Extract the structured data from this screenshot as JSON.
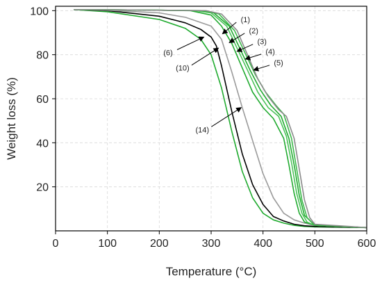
{
  "chart_data": {
    "type": "line",
    "xlabel": "Temperature (°C)",
    "ylabel": "Weight loss (%)",
    "xlim": [
      0,
      600
    ],
    "ylim": [
      0,
      102
    ],
    "xticks": [
      0,
      100,
      200,
      300,
      400,
      500,
      600
    ],
    "yticks": [
      20,
      40,
      60,
      80,
      100
    ],
    "grid": true,
    "series": [
      {
        "color": "#1faa2e",
        "x": [
          35,
          100,
          200,
          250,
          280,
          300,
          320,
          340,
          360,
          380,
          400,
          420,
          440,
          460,
          480,
          500,
          600
        ],
        "y": [
          100.5,
          99.5,
          96,
          92,
          87,
          80,
          65,
          45,
          27,
          15,
          8,
          5,
          3.5,
          2.5,
          2,
          1.8,
          1.5
        ]
      },
      {
        "color": "#000000",
        "x": [
          35,
          100,
          200,
          250,
          280,
          300,
          310,
          320,
          340,
          360,
          380,
          400,
          420,
          440,
          460,
          480,
          500,
          600
        ],
        "y": [
          100.5,
          100,
          97.5,
          94.5,
          91.5,
          88,
          84,
          75,
          54,
          35,
          21,
          12,
          6.5,
          4.5,
          3,
          2.3,
          2,
          1.5
        ]
      },
      {
        "color": "#9a9a9a",
        "x": [
          35,
          100,
          200,
          250,
          300,
          320,
          340,
          360,
          380,
          400,
          420,
          440,
          460,
          480,
          500,
          600
        ],
        "y": [
          100.5,
          100.2,
          99,
          97,
          93,
          87,
          72,
          56,
          41,
          26,
          15,
          8,
          5,
          3.5,
          2.5,
          1.5
        ]
      },
      {
        "color": "#1faa2e",
        "x": [
          35,
          100,
          200,
          260,
          300,
          320,
          340,
          360,
          380,
          400,
          420,
          440,
          450,
          460,
          470,
          480,
          500,
          600
        ],
        "y": [
          100.5,
          100.4,
          100.2,
          100,
          98,
          93,
          85,
          74,
          63,
          56,
          51,
          42,
          30,
          17,
          8,
          4,
          2.5,
          1.5
        ]
      },
      {
        "color": "#4cc25a",
        "x": [
          35,
          100,
          200,
          270,
          300,
          330,
          350,
          370,
          390,
          410,
          430,
          445,
          455,
          465,
          475,
          485,
          500,
          600
        ],
        "y": [
          100.5,
          100.4,
          100.2,
          100,
          99,
          93,
          83,
          73,
          63,
          56,
          52,
          43,
          31,
          17,
          8,
          4,
          2.5,
          1.5
        ]
      },
      {
        "color": "#1faa2e",
        "x": [
          35,
          100,
          200,
          280,
          305,
          335,
          355,
          375,
          395,
          415,
          435,
          450,
          460,
          470,
          480,
          500,
          600
        ],
        "y": [
          100.5,
          100.4,
          100.2,
          100,
          99,
          93,
          83,
          73,
          64,
          57,
          52,
          42,
          30,
          16,
          7,
          2.5,
          1.5
        ]
      },
      {
        "color": "#3cb84a",
        "x": [
          35,
          100,
          200,
          285,
          315,
          345,
          365,
          385,
          405,
          425,
          440,
          455,
          465,
          475,
          485,
          500,
          600
        ],
        "y": [
          100.5,
          100.4,
          100.2,
          100,
          98.5,
          91,
          81,
          71,
          63,
          57,
          53,
          42,
          28,
          14,
          6,
          2.5,
          1.5
        ]
      },
      {
        "color": "#8a8a8a",
        "x": [
          35,
          100,
          200,
          290,
          320,
          350,
          370,
          390,
          410,
          430,
          445,
          460,
          470,
          480,
          490,
          500,
          600
        ],
        "y": [
          100.5,
          100.4,
          100.2,
          100,
          98.5,
          91,
          80,
          69,
          61,
          55,
          52,
          42,
          28,
          14,
          6,
          3,
          1.5
        ]
      }
    ],
    "annotations": [
      {
        "label": "(1)",
        "text_at": [
          366,
          96
        ],
        "arrow_to": [
          322,
          89.5
        ]
      },
      {
        "label": "(2)",
        "text_at": [
          382,
          91
        ],
        "arrow_to": [
          335,
          85.5
        ]
      },
      {
        "label": "(3)",
        "text_at": [
          398,
          86
        ],
        "arrow_to": [
          350,
          81.5
        ]
      },
      {
        "label": "(4)",
        "text_at": [
          414,
          81.5
        ],
        "arrow_to": [
          366,
          78
        ]
      },
      {
        "label": "(5)",
        "text_at": [
          430,
          76.5
        ],
        "arrow_to": [
          382,
          73
        ]
      },
      {
        "label": "(6)",
        "text_at": [
          217,
          81
        ],
        "arrow_to": [
          286,
          88
        ]
      },
      {
        "label": "(10)",
        "text_at": [
          245,
          74
        ],
        "arrow_to": [
          314,
          83
        ]
      },
      {
        "label": "(14)",
        "text_at": [
          283,
          46
        ],
        "arrow_to": [
          358,
          56
        ]
      }
    ]
  }
}
